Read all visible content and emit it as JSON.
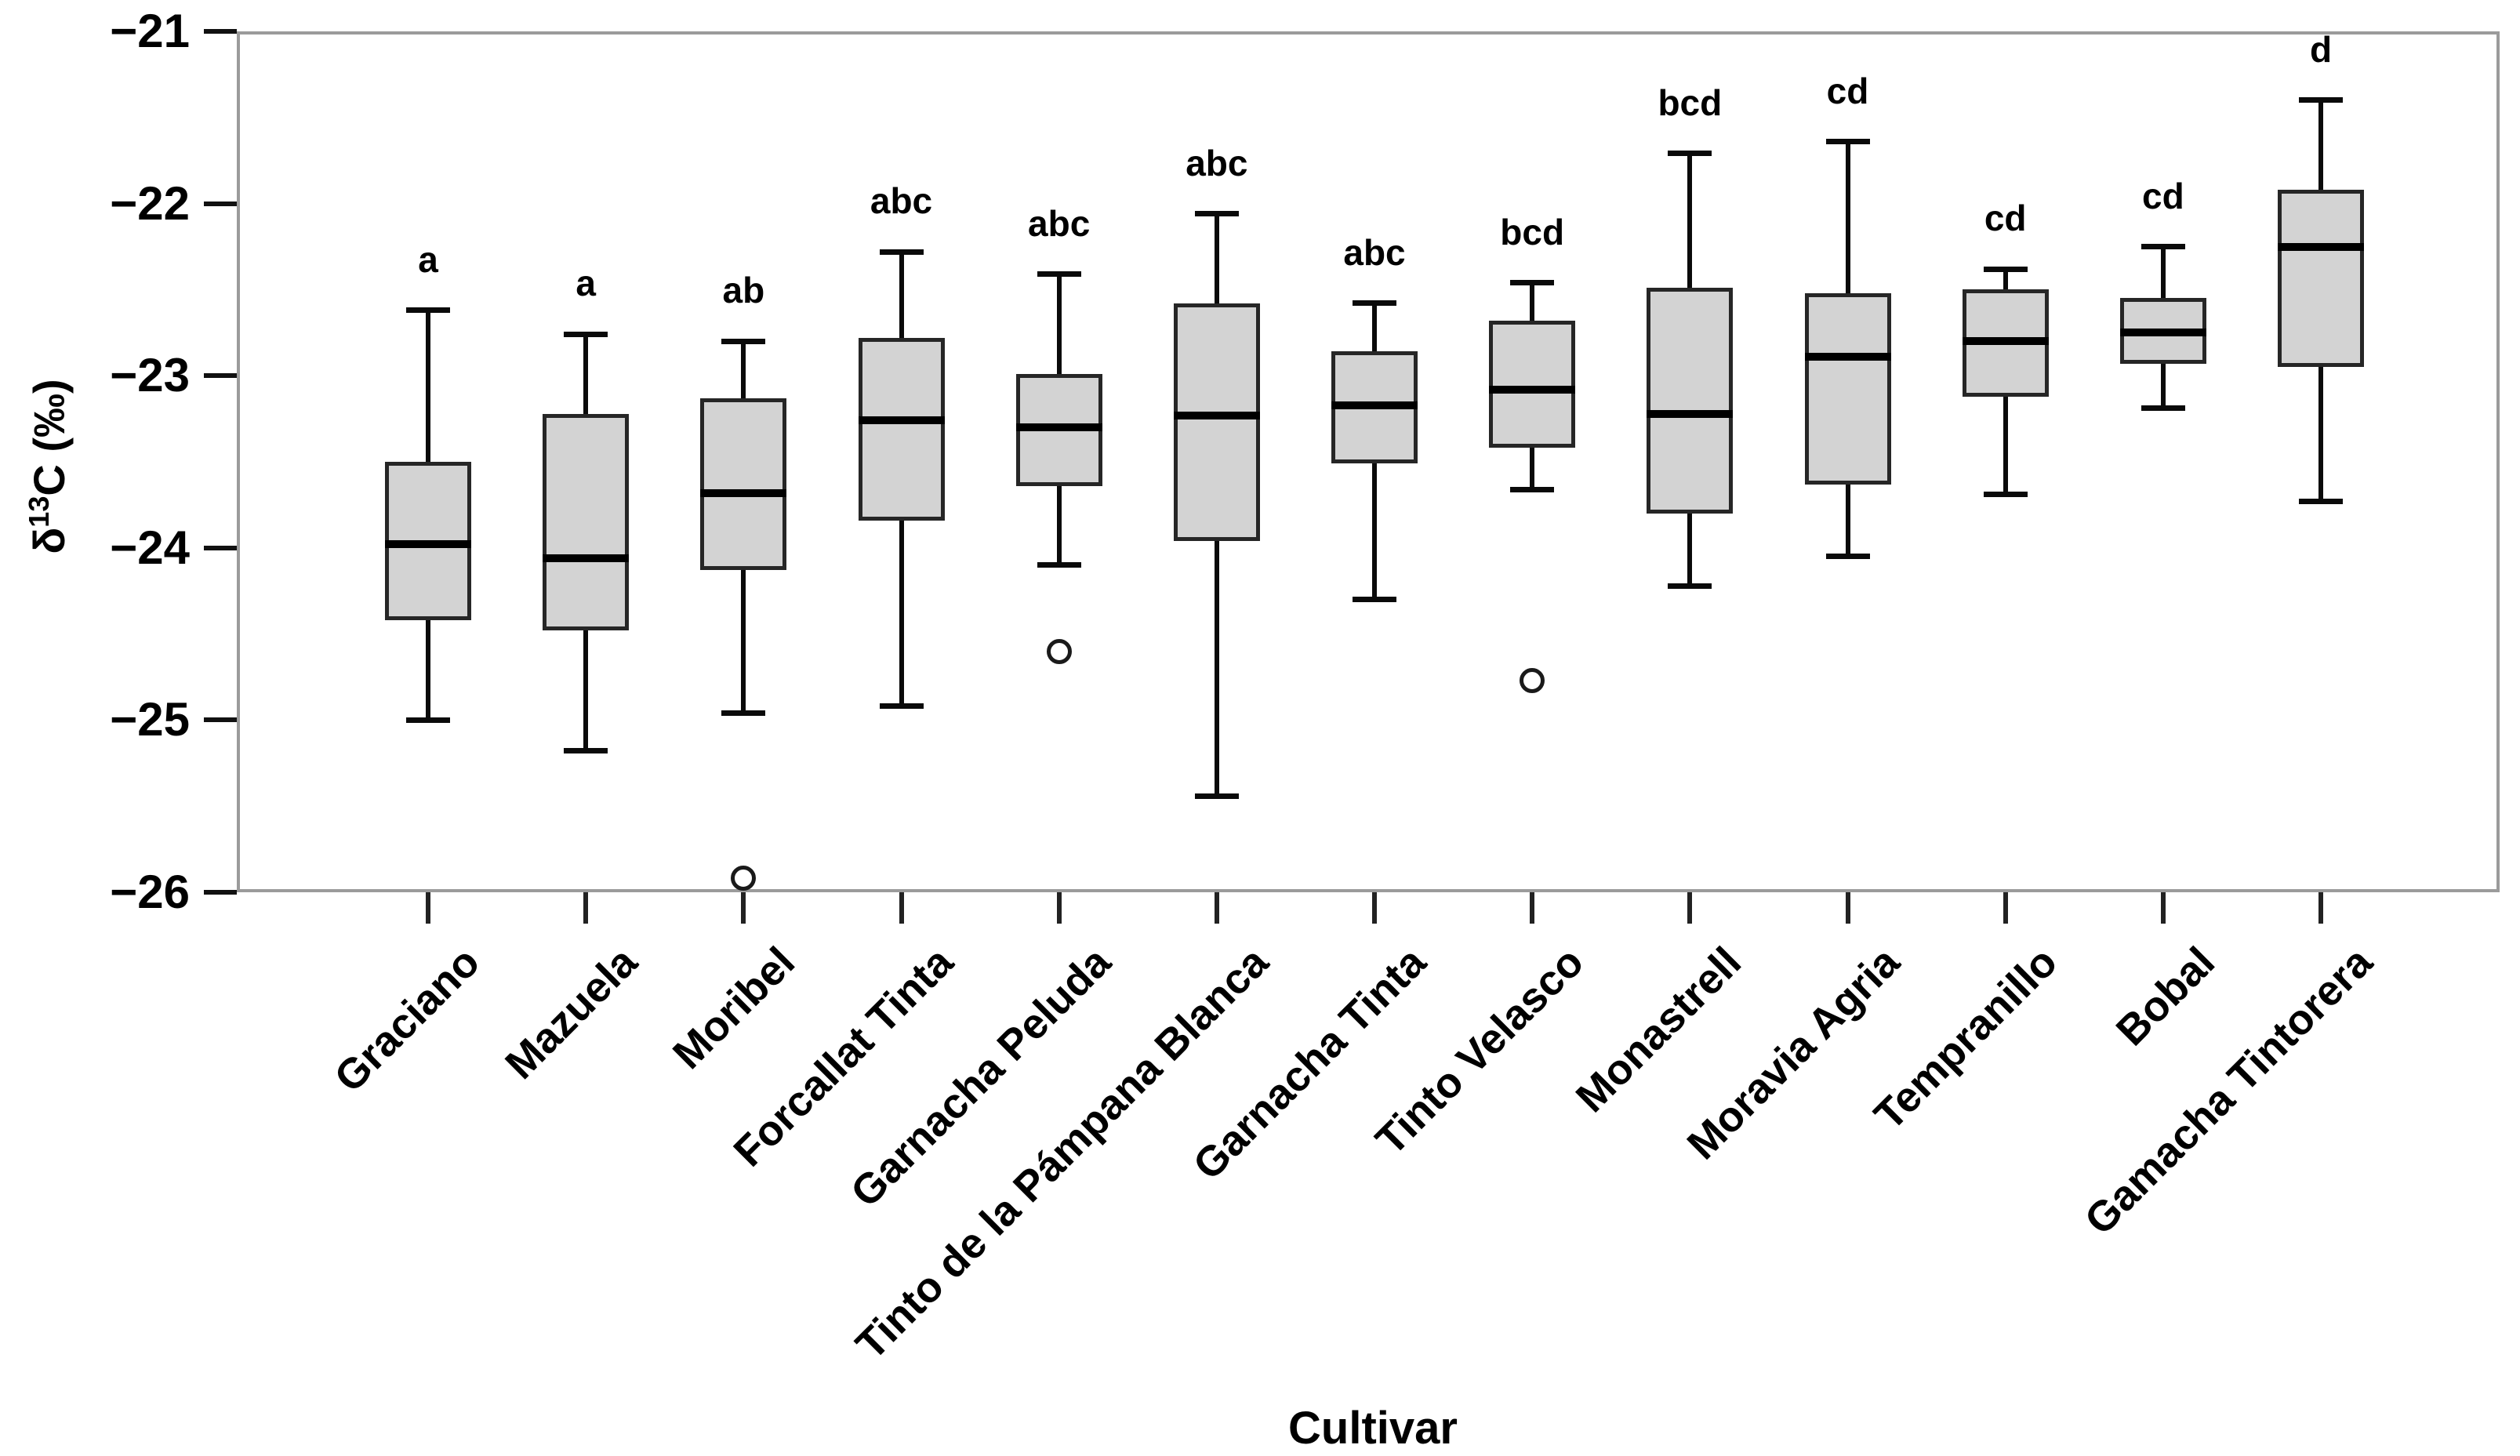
{
  "figure": {
    "background": "#ffffff",
    "frame_color": "#9b9b9b",
    "box_fill": "#d3d3d3",
    "box_border": "#262626",
    "line_color": "#0a0a0a",
    "text_color": "#000000",
    "ylabel_parts": {
      "delta": "δ",
      "sup": "13",
      "rest": "C (‰)"
    }
  },
  "chart_data": {
    "type": "boxplot",
    "title": "",
    "xlabel": "Cultivar",
    "ylabel": "δ13C (‰)",
    "ylim": [
      -26,
      -21
    ],
    "yticks": [
      -21,
      -22,
      -23,
      -24,
      -25,
      -26
    ],
    "ytick_labels": [
      "−21",
      "−22",
      "−23",
      "−24",
      "−25",
      "−26"
    ],
    "grid": false,
    "legend": "none",
    "categories": [
      "Graciano",
      "Mazuela",
      "Moribel",
      "Forcallat Tinta",
      "Garnacha Peluda",
      "Tinto de la Pámpana Blanca",
      "Garnacha Tinta",
      "Tinto Velasco",
      "Monastrell",
      "Moravia Agria",
      "Tempranillo",
      "Bobal",
      "Gamacha Tintorera"
    ],
    "significance_letters": [
      "a",
      "a",
      "ab",
      "abc",
      "abc",
      "abc",
      "abc",
      "bcd",
      "bcd",
      "cd",
      "cd",
      "cd",
      "d"
    ],
    "boxes": [
      {
        "cultivar": "Graciano",
        "letter": "a",
        "whisker_high": -22.62,
        "q3": -23.5,
        "median": -23.98,
        "q1": -24.42,
        "whisker_low": -25.0,
        "outliers": []
      },
      {
        "cultivar": "Mazuela",
        "letter": "a",
        "whisker_high": -22.76,
        "q3": -23.22,
        "median": -24.06,
        "q1": -24.48,
        "whisker_low": -25.18,
        "outliers": []
      },
      {
        "cultivar": "Moribel",
        "letter": "ab",
        "whisker_high": -22.8,
        "q3": -23.13,
        "median": -23.68,
        "q1": -24.13,
        "whisker_low": -24.96,
        "outliers": [
          -25.92
        ]
      },
      {
        "cultivar": "Forcallat Tinta",
        "letter": "abc",
        "whisker_high": -22.28,
        "q3": -22.78,
        "median": -23.26,
        "q1": -23.84,
        "whisker_low": -24.92,
        "outliers": []
      },
      {
        "cultivar": "Garnacha Peluda",
        "letter": "abc",
        "whisker_high": -22.41,
        "q3": -22.99,
        "median": -23.3,
        "q1": -23.64,
        "whisker_low": -24.1,
        "outliers": [
          -24.6
        ]
      },
      {
        "cultivar": "Tinto de la Pámpana Blanca",
        "letter": "abc",
        "whisker_high": -22.06,
        "q3": -22.58,
        "median": -23.23,
        "q1": -23.96,
        "whisker_low": -25.44,
        "outliers": []
      },
      {
        "cultivar": "Garnacha Tinta",
        "letter": "abc",
        "whisker_high": -22.58,
        "q3": -22.86,
        "median": -23.17,
        "q1": -23.51,
        "whisker_low": -24.3,
        "outliers": []
      },
      {
        "cultivar": "Tinto Velasco",
        "letter": "bcd",
        "whisker_high": -22.46,
        "q3": -22.68,
        "median": -23.08,
        "q1": -23.42,
        "whisker_low": -23.66,
        "outliers": [
          -24.77
        ]
      },
      {
        "cultivar": "Monastrell",
        "letter": "bcd",
        "whisker_high": -21.71,
        "q3": -22.49,
        "median": -23.22,
        "q1": -23.8,
        "whisker_low": -24.22,
        "outliers": []
      },
      {
        "cultivar": "Moravia Agria",
        "letter": "cd",
        "whisker_high": -21.64,
        "q3": -22.52,
        "median": -22.89,
        "q1": -23.63,
        "whisker_low": -24.05,
        "outliers": []
      },
      {
        "cultivar": "Tempranillo",
        "letter": "cd",
        "whisker_high": -22.38,
        "q3": -22.5,
        "median": -22.8,
        "q1": -23.12,
        "whisker_low": -23.69,
        "outliers": []
      },
      {
        "cultivar": "Bobal",
        "letter": "cd",
        "whisker_high": -22.25,
        "q3": -22.55,
        "median": -22.75,
        "q1": -22.93,
        "whisker_low": -23.19,
        "outliers": []
      },
      {
        "cultivar": "Gamacha Tintorera",
        "letter": "d",
        "whisker_high": -21.4,
        "q3": -21.92,
        "median": -22.25,
        "q1": -22.95,
        "whisker_low": -23.73,
        "outliers": []
      }
    ]
  }
}
